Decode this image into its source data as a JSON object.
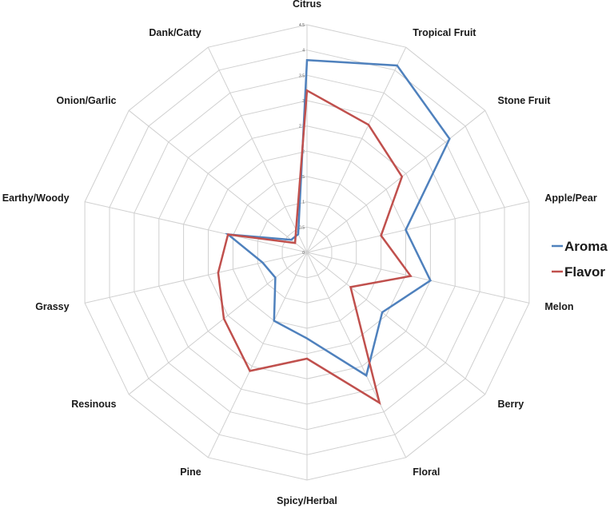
{
  "chart_data": {
    "type": "radar",
    "categories": [
      "Citrus",
      "Tropical Fruit",
      "Stone Fruit",
      "Apple/Pear",
      "Melon",
      "Berry",
      "Floral",
      "Spicy/Herbal",
      "Pine",
      "Resinous",
      "Grassy",
      "Earthy/Woody",
      "Onion/Garlic",
      "Dank/Catty"
    ],
    "r_ticks": [
      "0",
      "0.5",
      "1",
      "1.5",
      "2",
      "2.5",
      "3",
      "3.5",
      "4",
      "4.5"
    ],
    "rlim": [
      0,
      4.5
    ],
    "grid": true,
    "legend_position": "right",
    "series": [
      {
        "name": "Aroma",
        "color": "#4f81bd",
        "values": [
          3.8,
          4.1,
          3.6,
          2.0,
          2.5,
          1.9,
          2.7,
          1.7,
          1.5,
          0.8,
          0.9,
          1.6,
          0.4,
          0.4
        ]
      },
      {
        "name": "Flavor",
        "color": "#c0504d",
        "values": [
          3.2,
          2.8,
          2.4,
          1.5,
          2.1,
          1.1,
          3.3,
          2.1,
          2.6,
          2.1,
          1.8,
          1.6,
          0.3,
          0.5
        ]
      }
    ]
  }
}
